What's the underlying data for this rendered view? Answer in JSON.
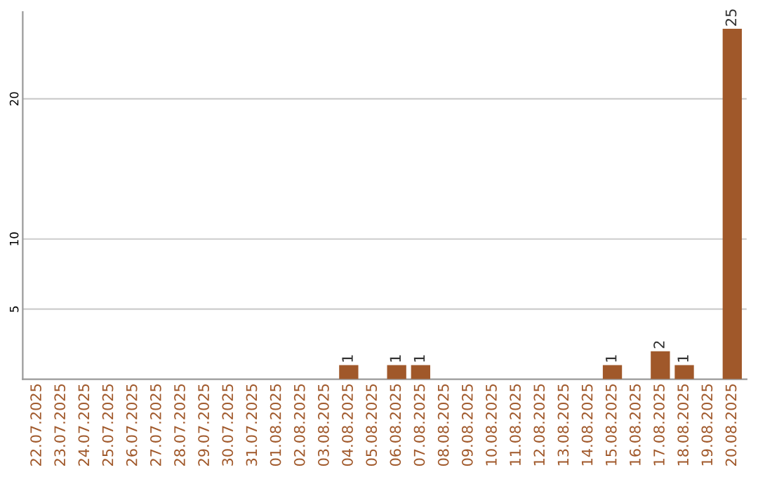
{
  "chart_data": {
    "type": "bar",
    "categories": [
      "22.07.2025",
      "23.07.2025",
      "24.07.2025",
      "25.07.2025",
      "26.07.2025",
      "27.07.2025",
      "28.07.2025",
      "29.07.2025",
      "30.07.2025",
      "31.07.2025",
      "01.08.2025",
      "02.08.2025",
      "03.08.2025",
      "04.08.2025",
      "05.08.2025",
      "06.08.2025",
      "07.08.2025",
      "08.08.2025",
      "09.08.2025",
      "10.08.2025",
      "11.08.2025",
      "12.08.2025",
      "13.08.2025",
      "14.08.2025",
      "15.08.2025",
      "16.08.2025",
      "17.08.2025",
      "18.08.2025",
      "19.08.2025",
      "20.08.2025"
    ],
    "values": [
      0,
      0,
      0,
      0,
      0,
      0,
      0,
      0,
      0,
      0,
      0,
      0,
      0,
      1,
      0,
      1,
      1,
      0,
      0,
      0,
      0,
      0,
      0,
      0,
      1,
      0,
      2,
      1,
      0,
      25
    ],
    "value_labels": [
      null,
      null,
      null,
      null,
      null,
      null,
      null,
      null,
      null,
      null,
      null,
      null,
      null,
      "1",
      null,
      "1",
      "1",
      null,
      null,
      null,
      null,
      null,
      null,
      null,
      "1",
      null,
      "2",
      "1",
      null,
      "25"
    ],
    "color": "#a0582a",
    "ylim": [
      0,
      26.2
    ],
    "yticks": [
      5,
      10,
      20
    ],
    "grid": "y"
  }
}
